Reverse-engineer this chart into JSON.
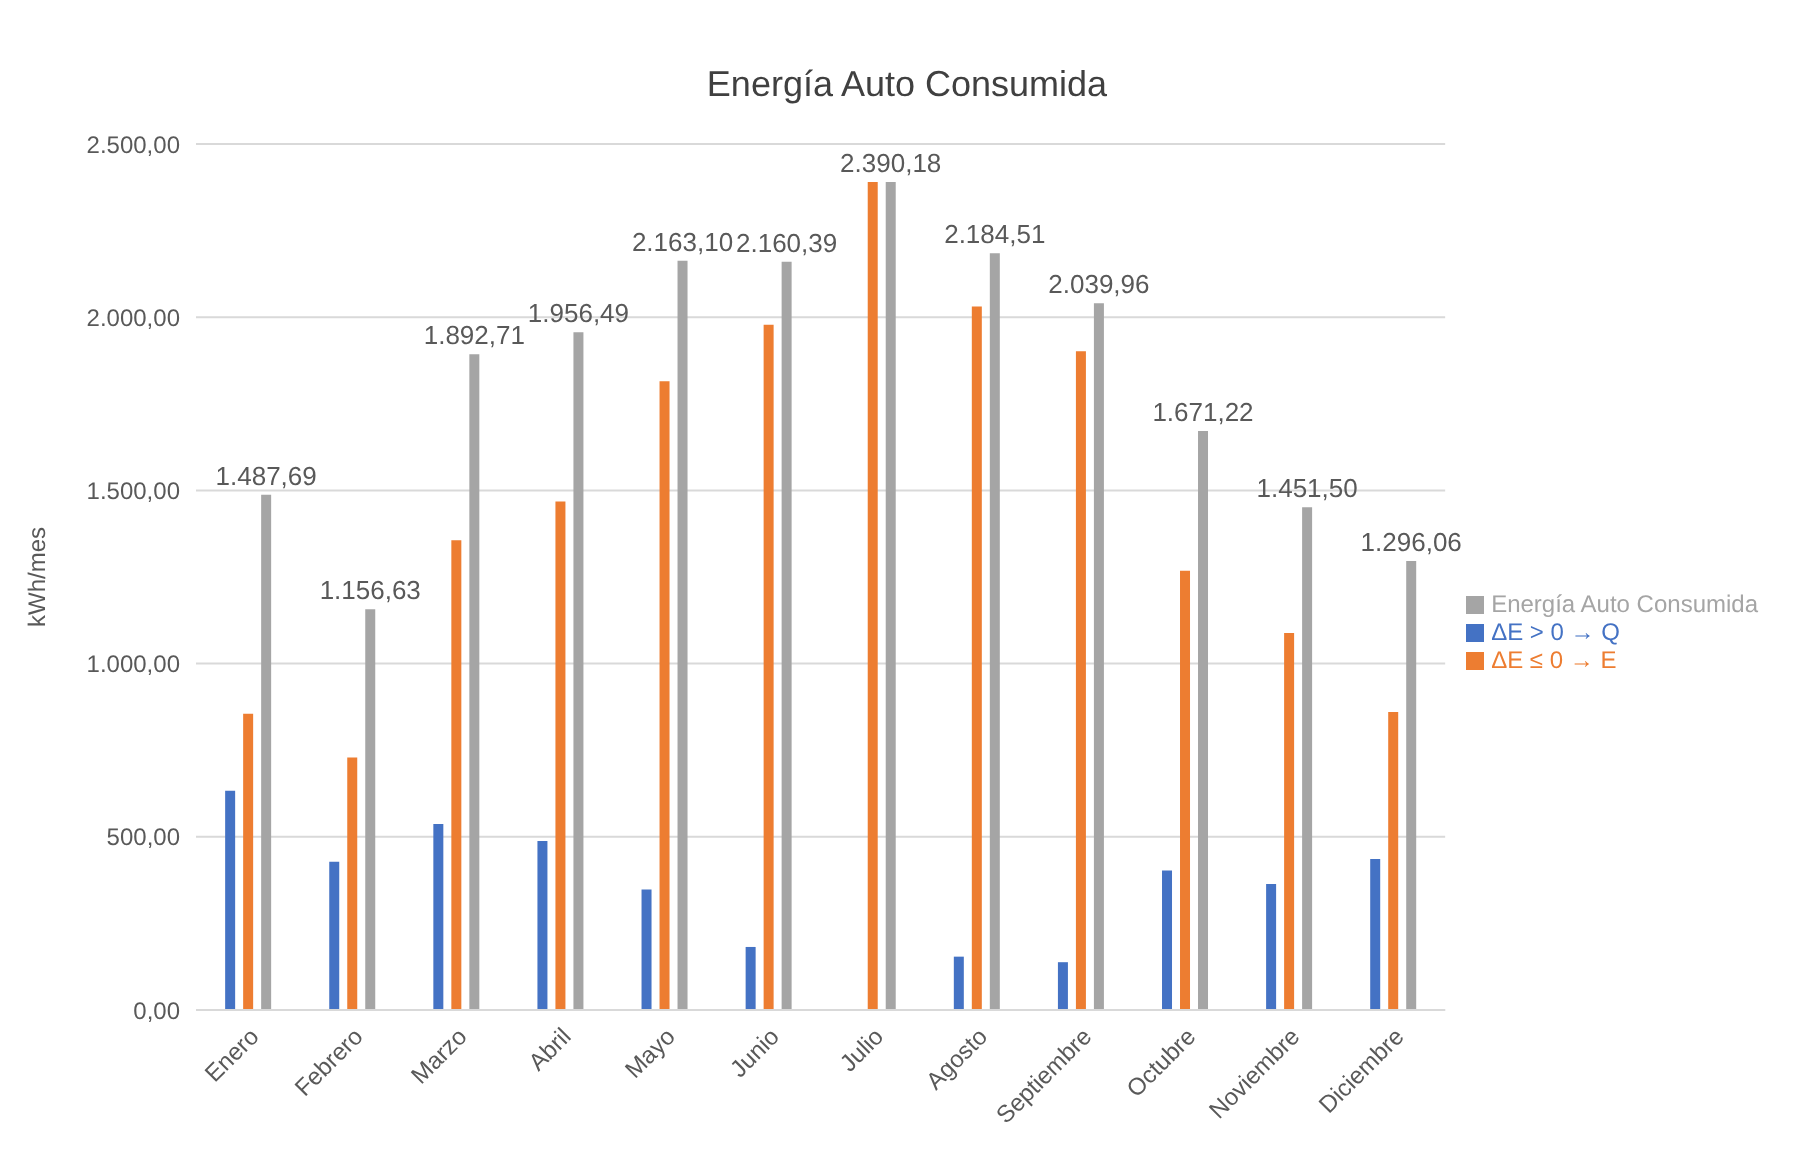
{
  "chart_data": {
    "type": "bar",
    "title": "Energía Auto Consumida",
    "ylabel": "kWh/mes",
    "categories": [
      "Enero",
      "Febrero",
      "Marzo",
      "Abril",
      "Mayo",
      "Junio",
      "Julio",
      "Agosto",
      "Septiembre",
      "Octubre",
      "Noviembre",
      "Diciembre"
    ],
    "series": [
      {
        "name": "ΔE > 0 → Q",
        "color": "#4472c4",
        "values": [
          633,
          428,
          537,
          488,
          348,
          182,
          0,
          154,
          138,
          403,
          364,
          436
        ]
      },
      {
        "name": "ΔE ≤ 0 → E",
        "color": "#ed7d31",
        "values": [
          855,
          729,
          1356,
          1468,
          1815,
          1978,
          2390,
          2031,
          1902,
          1268,
          1088,
          860
        ]
      },
      {
        "name": "Energía Auto Consumida",
        "color": "#a5a5a5",
        "values": [
          1487.69,
          1156.63,
          1892.71,
          1956.49,
          2163.1,
          2160.39,
          2390.18,
          2184.51,
          2039.96,
          1671.22,
          1451.5,
          1296.06
        ],
        "value_labels": [
          "1.487,69",
          "1.156,63",
          "1.892,71",
          "1.956,49",
          "2.163,10",
          "2.160,39",
          "2.390,18",
          "2.184,51",
          "2.039,96",
          "1.671,22",
          "1.451,50",
          "1.296,06"
        ]
      }
    ],
    "ylim": [
      0,
      2500
    ],
    "yticks": [
      {
        "value": 0,
        "label": "0,00"
      },
      {
        "value": 500,
        "label": "500,00"
      },
      {
        "value": 1000,
        "label": "1.000,00"
      },
      {
        "value": 1500,
        "label": "1.500,00"
      },
      {
        "value": 2000,
        "label": "2.000,00"
      },
      {
        "value": 2500,
        "label": "2.500,00"
      }
    ],
    "grid": "y",
    "legend": "right"
  }
}
